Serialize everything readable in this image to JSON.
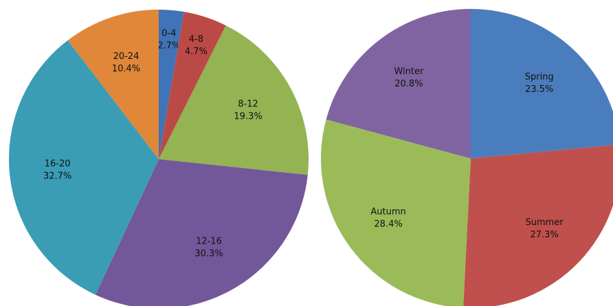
{
  "chart_data": [
    {
      "type": "pie",
      "categories": [
        "0-4",
        "4-8",
        "8-12",
        "12-16",
        "16-20",
        "20-24"
      ],
      "values": [
        2.7,
        4.7,
        19.3,
        30.3,
        32.7,
        10.4
      ],
      "value_labels": [
        "2.7%",
        "4.7%",
        "19.3%",
        "30.3%",
        "32.7%",
        "10.4%"
      ],
      "colors": [
        "#3f74b8",
        "#bb4a47",
        "#94b353",
        "#72589a",
        "#3a9db5",
        "#e0873a"
      ]
    },
    {
      "type": "pie",
      "categories": [
        "Spring",
        "Summer",
        "Autumn",
        "Winter"
      ],
      "values": [
        23.5,
        27.3,
        28.4,
        20.8
      ],
      "value_labels": [
        "23.5%",
        "27.3%",
        "28.4%",
        "20.8%"
      ],
      "colors": [
        "#4a7dbd",
        "#c0504d",
        "#9bbb59",
        "#8064a2"
      ]
    }
  ]
}
